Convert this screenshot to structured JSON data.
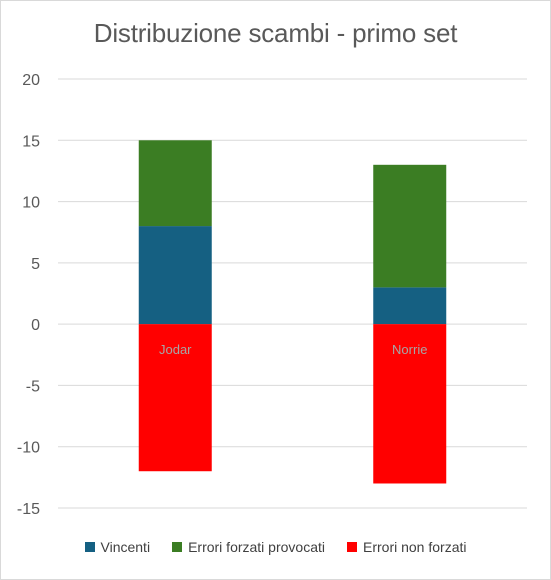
{
  "chart_data": {
    "type": "bar",
    "stacked": true,
    "title": "Distribuzione scambi - primo set",
    "categories": [
      "Jodar",
      "Norrie"
    ],
    "series": [
      {
        "name": "Vincenti",
        "values": [
          8,
          3
        ],
        "color": "#156082"
      },
      {
        "name": "Errori forzati provocati",
        "values": [
          7,
          10
        ],
        "color": "#3b7d23"
      },
      {
        "name": "Errori non forzati",
        "values": [
          -12,
          -13
        ],
        "color": "#ff0000"
      }
    ],
    "ylim": [
      -15,
      20
    ],
    "yticks": [
      20,
      15,
      10,
      5,
      0,
      -5,
      -10,
      -15
    ],
    "grid": true,
    "legend_position": "bottom"
  }
}
